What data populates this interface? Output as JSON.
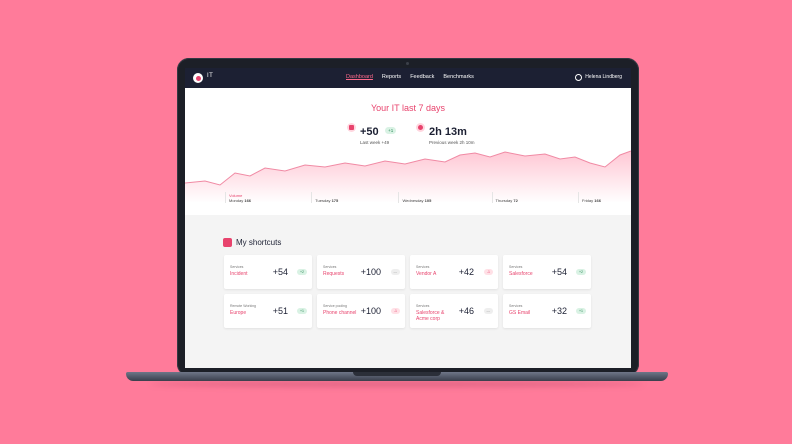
{
  "nav": {
    "app_name": "IT",
    "links": [
      "Dashboard",
      "Reports",
      "Feedback",
      "Benchmarks"
    ],
    "active": "Dashboard",
    "user": "Helena Lindberg"
  },
  "hero": {
    "title": "Your IT last 7 days",
    "stats": [
      {
        "value": "+50",
        "chip": "+1",
        "sub": "Last week +49",
        "icon": "tag-icon"
      },
      {
        "value": "2h 13m",
        "sub": "Previous week 2h 10m",
        "icon": "clock-icon"
      }
    ],
    "days": [
      {
        "label": "Monday",
        "value": "166",
        "volume": "Volume"
      },
      {
        "label": "Tuesday",
        "value": "175"
      },
      {
        "label": "Wednesday",
        "value": "105"
      },
      {
        "label": "Thursday",
        "value": "72"
      },
      {
        "label": "Friday",
        "value": "166"
      }
    ]
  },
  "shortcuts": {
    "title": "My shortcuts",
    "cards": [
      {
        "category": "Services",
        "name": "Incident",
        "value": "+54",
        "chip": "+2",
        "trend": "up"
      },
      {
        "category": "Services",
        "name": "Requests",
        "value": "+100",
        "chip": "---",
        "trend": "flat"
      },
      {
        "category": "Services",
        "name": "Vendor A",
        "value": "+42",
        "chip": "-1",
        "trend": "down"
      },
      {
        "category": "Services",
        "name": "Salesforce",
        "value": "+54",
        "chip": "+2",
        "trend": "up"
      },
      {
        "category": "Remote Working",
        "name": "Europe",
        "value": "+51",
        "chip": "+1",
        "trend": "up"
      },
      {
        "category": "Service pooling",
        "name": "Phone channel",
        "value": "+100",
        "chip": "-1",
        "trend": "down"
      },
      {
        "category": "Services",
        "name": "Salesforce & Acme corp",
        "value": "+46",
        "chip": "---",
        "trend": "flat"
      },
      {
        "category": "Services",
        "name": "GS Email",
        "value": "+32",
        "chip": "+1",
        "trend": "up"
      }
    ]
  },
  "colors": {
    "background": "#ff7b9a",
    "accent": "#e8436d",
    "nav": "#1c2033"
  }
}
